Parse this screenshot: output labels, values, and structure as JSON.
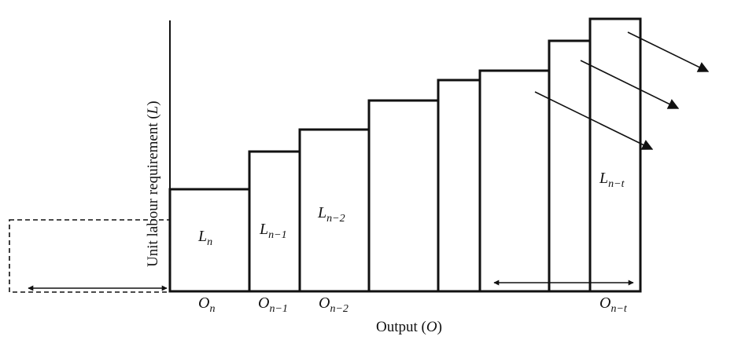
{
  "diagram": {
    "y_axis_label": "Unit labour requirement (",
    "y_axis_var": "L",
    "y_axis_close": ")",
    "x_axis_label": "Output (",
    "x_axis_var": "O",
    "x_axis_close": ")",
    "bar_labels": [
      {
        "base": "L",
        "sub": "n"
      },
      {
        "base": "L",
        "sub": "n−1"
      },
      {
        "base": "L",
        "sub": "n−2"
      },
      {
        "base": "L",
        "sub": "n−t"
      }
    ],
    "output_labels": [
      {
        "base": "O",
        "sub": "n"
      },
      {
        "base": "O",
        "sub": "n−1"
      },
      {
        "base": "O",
        "sub": "n−2"
      },
      {
        "base": "O",
        "sub": "n−t"
      }
    ],
    "line_color": "#111111",
    "background": "#ffffff"
  }
}
